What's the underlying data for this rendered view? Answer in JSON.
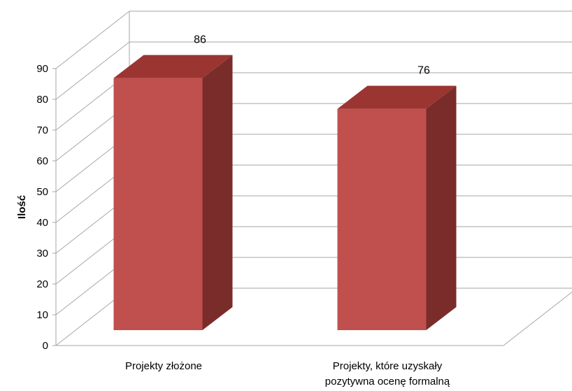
{
  "chart_data": {
    "type": "bar",
    "categories": [
      "Projekty złożone",
      "Projekty, które uzyskały pozytywna ocenę formalną"
    ],
    "category_lines": [
      [
        "Projekty złożone"
      ],
      [
        "Projekty, które uzyskały",
        "pozytywna ocenę formalną"
      ]
    ],
    "values": [
      86,
      76
    ],
    "title": "",
    "xlabel": "",
    "ylabel": "Ilość",
    "ylim": [
      0,
      90
    ],
    "yticks": [
      0,
      10,
      20,
      30,
      40,
      50,
      60,
      70,
      80,
      90
    ],
    "grid": true,
    "legend": "none",
    "style": "3d-column",
    "colors": {
      "front": "#c0504d",
      "top": "#9b3532",
      "side": "#7a2c2a",
      "grid": "#a6a6a6"
    }
  }
}
